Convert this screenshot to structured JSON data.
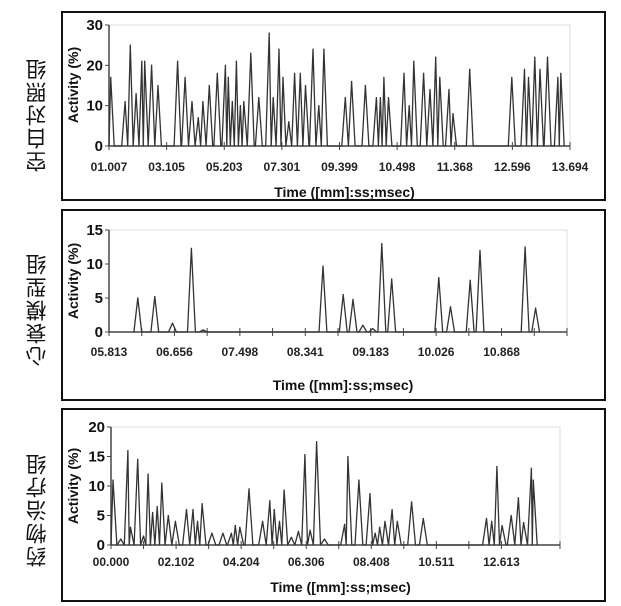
{
  "chart_data": [
    {
      "type": "line",
      "group_label": "空白对照组",
      "xlabel": "Time ([mm]:ss;msec)",
      "ylabel": "Activity (%)",
      "x_unit": "tick index (0 = first tick label)",
      "x_range": [
        0,
        8
      ],
      "ylim": [
        0,
        30
      ],
      "yticks": [
        "0",
        "10",
        "20",
        "30"
      ],
      "xtick_labels": [
        "01.007",
        "03.105",
        "05.203",
        "07.301",
        "09.399",
        "10.498",
        "11.368",
        "12.596",
        "13.694"
      ],
      "peaks": [
        [
          0.03,
          17
        ],
        [
          0.28,
          11
        ],
        [
          0.37,
          25
        ],
        [
          0.47,
          13
        ],
        [
          0.57,
          21
        ],
        [
          0.62,
          21
        ],
        [
          0.74,
          20
        ],
        [
          0.85,
          15
        ],
        [
          1.19,
          21
        ],
        [
          1.32,
          17
        ],
        [
          1.44,
          11
        ],
        [
          1.55,
          7
        ],
        [
          1.63,
          11
        ],
        [
          1.74,
          15
        ],
        [
          1.88,
          18
        ],
        [
          2.02,
          20
        ],
        [
          2.07,
          17
        ],
        [
          2.14,
          11
        ],
        [
          2.21,
          21
        ],
        [
          2.28,
          10
        ],
        [
          2.34,
          11
        ],
        [
          2.46,
          23
        ],
        [
          2.6,
          12
        ],
        [
          2.78,
          28
        ],
        [
          2.85,
          12
        ],
        [
          2.95,
          24
        ],
        [
          3.02,
          17
        ],
        [
          3.12,
          6
        ],
        [
          3.22,
          18
        ],
        [
          3.32,
          18
        ],
        [
          3.41,
          15
        ],
        [
          3.54,
          24
        ],
        [
          3.64,
          10
        ],
        [
          3.73,
          24
        ],
        [
          4.1,
          12
        ],
        [
          4.21,
          16
        ],
        [
          4.45,
          15
        ],
        [
          4.64,
          12
        ],
        [
          4.71,
          12
        ],
        [
          4.77,
          17
        ],
        [
          4.85,
          12
        ],
        [
          5.12,
          18
        ],
        [
          5.21,
          10
        ],
        [
          5.29,
          21
        ],
        [
          5.46,
          18
        ],
        [
          5.57,
          14
        ],
        [
          5.67,
          22
        ],
        [
          5.74,
          17
        ],
        [
          5.9,
          14
        ],
        [
          5.97,
          8
        ],
        [
          6.26,
          19
        ],
        [
          6.99,
          17
        ],
        [
          7.21,
          19
        ],
        [
          7.28,
          17
        ],
        [
          7.39,
          22
        ],
        [
          7.48,
          19
        ],
        [
          7.61,
          22
        ],
        [
          7.79,
          17
        ],
        [
          7.84,
          18
        ]
      ]
    },
    {
      "type": "line",
      "group_label": "心衰模型组",
      "xlabel": "Time ([mm]:ss;msec)",
      "ylabel": "Activity (%)",
      "x_unit": "tick index (0 = first tick label)",
      "x_range": [
        0,
        7
      ],
      "ylim": [
        0,
        15
      ],
      "yticks": [
        "0",
        "5",
        "10",
        "15"
      ],
      "xtick_labels": [
        "05.813",
        "06.656",
        "07.498",
        "08.341",
        "09.183",
        "10.026",
        "10.868"
      ],
      "peaks": [
        [
          0.44,
          5
        ],
        [
          0.7,
          5.2
        ],
        [
          0.97,
          1.3
        ],
        [
          1.26,
          12.3
        ],
        [
          1.44,
          0.3
        ],
        [
          3.27,
          9.7
        ],
        [
          3.58,
          5.5
        ],
        [
          3.73,
          4.8
        ],
        [
          3.88,
          1
        ],
        [
          4.03,
          0.5
        ],
        [
          4.17,
          13
        ],
        [
          4.32,
          7.8
        ],
        [
          5.04,
          8
        ],
        [
          5.22,
          3.7
        ],
        [
          5.52,
          7.6
        ],
        [
          5.67,
          12
        ],
        [
          6.36,
          12.5
        ],
        [
          6.52,
          3.5
        ]
      ]
    },
    {
      "type": "line",
      "group_label": "药物治疗组",
      "xlabel": "Time ([mm]:ss;msec)",
      "ylabel": "Activity (%)",
      "x_unit": "tick index (0 = first tick label)",
      "x_range": [
        0,
        6.9
      ],
      "ylim": [
        0,
        20
      ],
      "yticks": [
        "0",
        "5",
        "10",
        "15",
        "20"
      ],
      "xtick_labels": [
        "00.000",
        "02.102",
        "04.204",
        "06.306",
        "08.408",
        "10.511",
        "12.613"
      ],
      "peaks": [
        [
          0.03,
          11
        ],
        [
          0.15,
          1
        ],
        [
          0.26,
          16
        ],
        [
          0.3,
          3
        ],
        [
          0.41,
          14.5
        ],
        [
          0.5,
          1.5
        ],
        [
          0.57,
          12
        ],
        [
          0.64,
          5.5
        ],
        [
          0.71,
          6.5
        ],
        [
          0.78,
          10.5
        ],
        [
          0.88,
          5
        ],
        [
          0.99,
          4
        ],
        [
          1.16,
          6
        ],
        [
          1.26,
          6
        ],
        [
          1.33,
          4
        ],
        [
          1.4,
          7
        ],
        [
          1.55,
          2
        ],
        [
          1.72,
          2
        ],
        [
          1.85,
          2
        ],
        [
          1.91,
          3.3
        ],
        [
          1.98,
          3
        ],
        [
          2.12,
          9.5
        ],
        [
          2.33,
          4
        ],
        [
          2.44,
          7.5
        ],
        [
          2.51,
          6
        ],
        [
          2.59,
          4
        ],
        [
          2.66,
          9.3
        ],
        [
          2.77,
          1.3
        ],
        [
          2.88,
          2.3
        ],
        [
          2.98,
          15.3
        ],
        [
          3.06,
          2.5
        ],
        [
          3.16,
          17.5
        ],
        [
          3.28,
          1
        ],
        [
          3.59,
          3.5
        ],
        [
          3.64,
          15
        ],
        [
          3.81,
          11
        ],
        [
          3.98,
          8.7
        ],
        [
          4.06,
          2
        ],
        [
          4.13,
          3
        ],
        [
          4.21,
          4
        ],
        [
          4.32,
          6
        ],
        [
          4.4,
          4
        ],
        [
          4.62,
          7.3
        ],
        [
          4.8,
          4.5
        ],
        [
          5.77,
          4.5
        ],
        [
          5.85,
          4
        ],
        [
          5.93,
          13.3
        ],
        [
          6.01,
          3.3
        ],
        [
          6.15,
          5
        ],
        [
          6.26,
          8
        ],
        [
          6.34,
          3.8
        ],
        [
          6.46,
          13
        ],
        [
          6.49,
          11
        ]
      ]
    }
  ]
}
